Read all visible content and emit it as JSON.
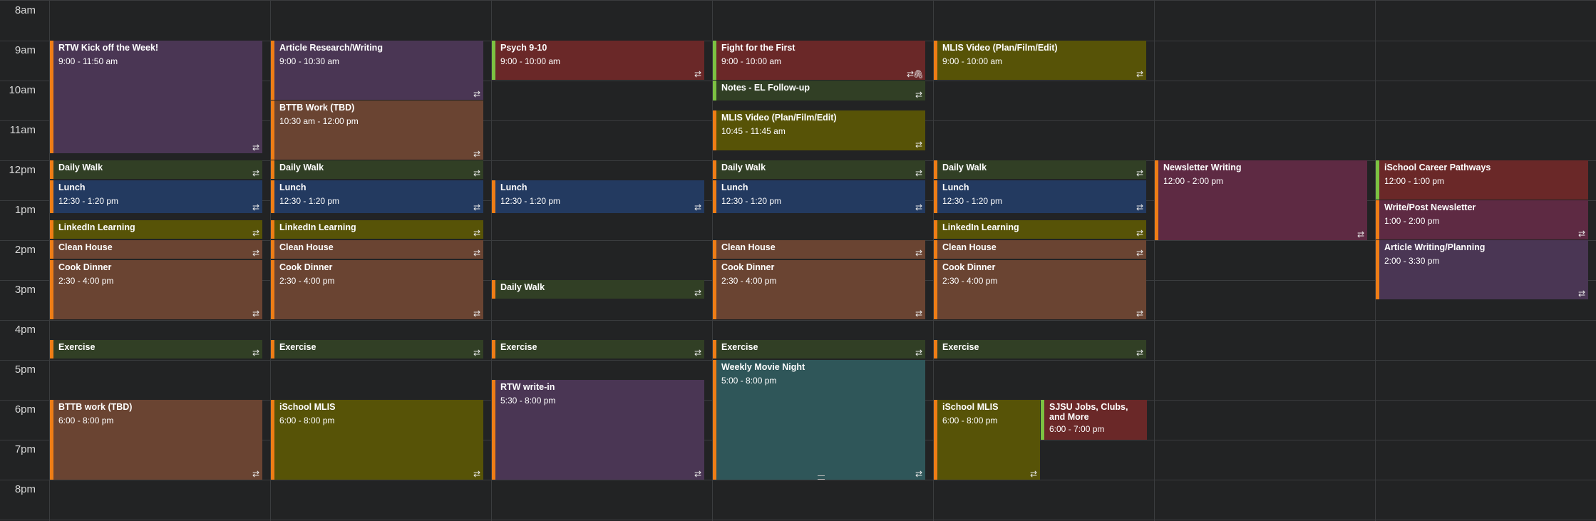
{
  "calendar": {
    "times": [
      "8am",
      "9am",
      "10am",
      "11am",
      "12pm",
      "1pm",
      "2pm",
      "3pm",
      "4pm",
      "5pm",
      "6pm",
      "7pm",
      "8pm"
    ],
    "repeat_glyph": "⇄",
    "attachment_glyph": "🖇",
    "colors": {
      "purple": "#4a3654",
      "brown": "#6a4432",
      "darkred": "#6a2828",
      "olive": "#575307",
      "green": "#313f25",
      "blue": "#233a60",
      "maroon": "#5e2a43",
      "teal": "#2f5659",
      "accent_orange": "#ee7d16",
      "accent_green": "#7cc242"
    },
    "events": [
      {
        "title": "RTW Kick off the Week!",
        "time": "9:00 - 11:50 am"
      },
      {
        "title": "Daily Walk",
        "time": ""
      },
      {
        "title": "Lunch",
        "time": "12:30 - 1:20 pm"
      },
      {
        "title": "LinkedIn Learning",
        "time": ""
      },
      {
        "title": "Clean House",
        "time": ""
      },
      {
        "title": "Cook Dinner",
        "time": "2:30 - 4:00 pm"
      },
      {
        "title": "Exercise",
        "time": ""
      },
      {
        "title": "BTTB work (TBD)",
        "time": "6:00 - 8:00 pm"
      },
      {
        "title": "Article Research/Writing",
        "time": "9:00 - 10:30 am"
      },
      {
        "title": "BTTB Work (TBD)",
        "time": "10:30 am - 12:00 pm"
      },
      {
        "title": "Daily Walk",
        "time": ""
      },
      {
        "title": "Lunch",
        "time": "12:30 - 1:20 pm"
      },
      {
        "title": "LinkedIn Learning",
        "time": ""
      },
      {
        "title": "Clean House",
        "time": ""
      },
      {
        "title": "Cook Dinner",
        "time": "2:30 - 4:00 pm"
      },
      {
        "title": "Exercise",
        "time": ""
      },
      {
        "title": "iSchool MLIS",
        "time": "6:00 - 8:00 pm"
      },
      {
        "title": "Psych 9-10",
        "time": "9:00 - 10:00 am"
      },
      {
        "title": "Lunch",
        "time": "12:30 - 1:20 pm"
      },
      {
        "title": "Daily Walk",
        "time": ""
      },
      {
        "title": "Exercise",
        "time": ""
      },
      {
        "title": "RTW write-in",
        "time": "5:30 - 8:00 pm"
      },
      {
        "title": "Fight for the First",
        "time": "9:00 - 10:00 am"
      },
      {
        "title": "Notes - EL Follow-up",
        "time": ""
      },
      {
        "title": "MLIS Video (Plan/Film/Edit)",
        "time": "10:45 - 11:45 am"
      },
      {
        "title": "Daily Walk",
        "time": ""
      },
      {
        "title": "Lunch",
        "time": "12:30 - 1:20 pm"
      },
      {
        "title": "Clean House",
        "time": ""
      },
      {
        "title": "Cook Dinner",
        "time": "2:30 - 4:00 pm"
      },
      {
        "title": "Exercise",
        "time": ""
      },
      {
        "title": "Weekly Movie Night",
        "time": "5:00 - 8:00 pm"
      },
      {
        "title": "MLIS Video (Plan/Film/Edit)",
        "time": "9:00 - 10:00 am"
      },
      {
        "title": "Daily Walk",
        "time": ""
      },
      {
        "title": "Lunch",
        "time": "12:30 - 1:20 pm"
      },
      {
        "title": "LinkedIn Learning",
        "time": ""
      },
      {
        "title": "Clean House",
        "time": ""
      },
      {
        "title": "Cook Dinner",
        "time": "2:30 - 4:00 pm"
      },
      {
        "title": "Exercise",
        "time": ""
      },
      {
        "title": "iSchool MLIS",
        "time": "6:00 - 8:00 pm"
      },
      {
        "title": "SJSU Jobs, Clubs, and More",
        "time": "6:00 - 7:00 pm"
      },
      {
        "title": "Newsletter Writing",
        "time": "12:00 - 2:00 pm"
      },
      {
        "title": "iSchool Career Pathways",
        "time": "12:00 - 1:00 pm"
      },
      {
        "title": "Write/Post Newsletter",
        "time": "1:00 - 2:00 pm"
      },
      {
        "title": "Article Writing/Planning",
        "time": "2:00 - 3:30 pm"
      }
    ]
  }
}
